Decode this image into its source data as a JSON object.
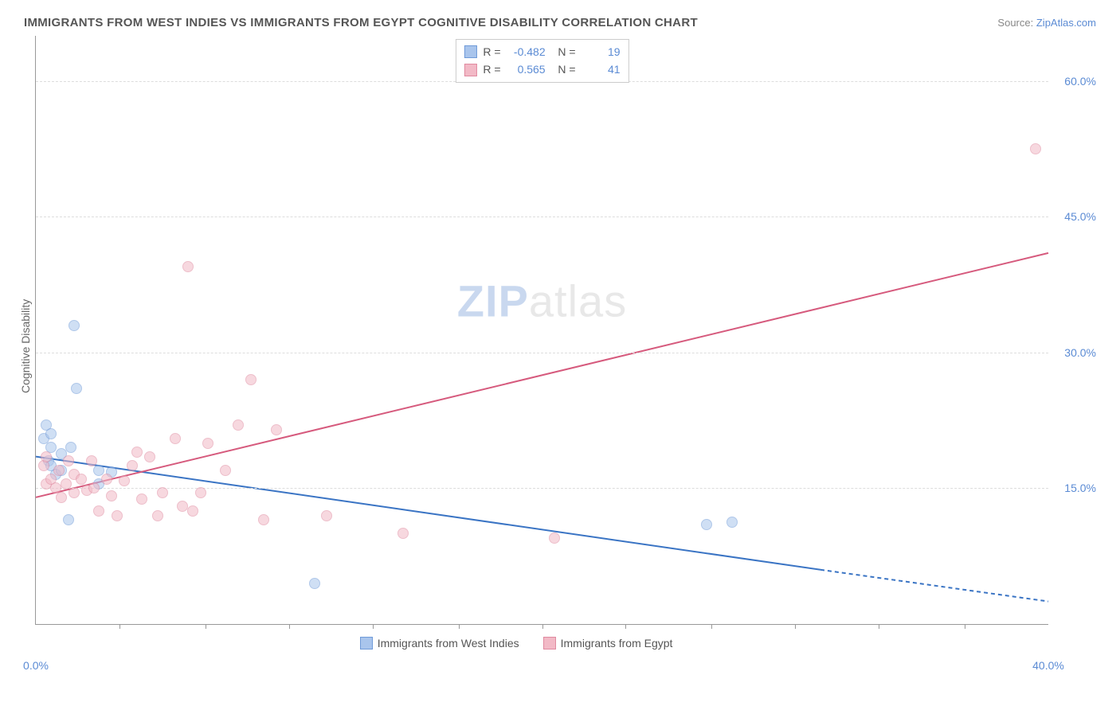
{
  "title": "IMMIGRANTS FROM WEST INDIES VS IMMIGRANTS FROM EGYPT COGNITIVE DISABILITY CORRELATION CHART",
  "source_label": "Source:",
  "source_name": "ZipAtlas.com",
  "chart": {
    "type": "scatter",
    "y_axis_label": "Cognitive Disability",
    "xlim": [
      0,
      40
    ],
    "ylim": [
      0,
      65
    ],
    "x_ticks": [
      0,
      40
    ],
    "x_tick_labels": [
      "0.0%",
      "40.0%"
    ],
    "x_minor_ticks": [
      3.3,
      6.7,
      10,
      13.3,
      16.7,
      20,
      23.3,
      26.7,
      30,
      33.3,
      36.7
    ],
    "y_ticks": [
      15,
      30,
      45,
      60
    ],
    "y_tick_labels": [
      "15.0%",
      "30.0%",
      "45.0%",
      "60.0%"
    ],
    "background_color": "#ffffff",
    "grid_color": "#dddddd",
    "axis_color": "#999999",
    "tick_label_color": "#5b8bd4",
    "marker_radius": 7,
    "marker_opacity": 0.55,
    "series": [
      {
        "name": "Immigrants from West Indies",
        "fill": "#a9c5ec",
        "stroke": "#6f9ad8",
        "line_color": "#3a74c4",
        "R": "-0.482",
        "N": "19",
        "trend": {
          "x1": 0,
          "y1": 18.5,
          "x2": 31,
          "y2": 6.0,
          "dash_x2": 40,
          "dash_y2": 2.5
        },
        "points": [
          [
            0.3,
            20.5
          ],
          [
            0.4,
            22.0
          ],
          [
            0.5,
            18.0
          ],
          [
            0.6,
            17.5
          ],
          [
            0.6,
            19.5
          ],
          [
            0.6,
            21.0
          ],
          [
            0.8,
            16.5
          ],
          [
            1.0,
            17.0
          ],
          [
            1.0,
            18.8
          ],
          [
            1.3,
            11.5
          ],
          [
            1.4,
            19.5
          ],
          [
            1.5,
            33.0
          ],
          [
            1.6,
            26.0
          ],
          [
            2.5,
            17.0
          ],
          [
            2.5,
            15.5
          ],
          [
            3.0,
            16.8
          ],
          [
            11.0,
            4.5
          ],
          [
            26.5,
            11.0
          ],
          [
            27.5,
            11.3
          ]
        ]
      },
      {
        "name": "Immigrants from Egypt",
        "fill": "#f2b9c6",
        "stroke": "#e08aa0",
        "line_color": "#d65a7d",
        "R": "0.565",
        "N": "41",
        "trend": {
          "x1": 0,
          "y1": 14.0,
          "x2": 40,
          "y2": 41.0
        },
        "points": [
          [
            0.3,
            17.5
          ],
          [
            0.4,
            18.5
          ],
          [
            0.4,
            15.5
          ],
          [
            0.6,
            16.0
          ],
          [
            0.8,
            15.0
          ],
          [
            0.9,
            17.0
          ],
          [
            1.0,
            14.0
          ],
          [
            1.2,
            15.5
          ],
          [
            1.3,
            18.0
          ],
          [
            1.5,
            16.5
          ],
          [
            1.5,
            14.5
          ],
          [
            1.8,
            16.0
          ],
          [
            2.0,
            14.8
          ],
          [
            2.2,
            18.0
          ],
          [
            2.3,
            15.0
          ],
          [
            2.5,
            12.5
          ],
          [
            2.8,
            16.0
          ],
          [
            3.0,
            14.2
          ],
          [
            3.2,
            12.0
          ],
          [
            3.5,
            15.8
          ],
          [
            3.8,
            17.5
          ],
          [
            4.0,
            19.0
          ],
          [
            4.2,
            13.8
          ],
          [
            4.5,
            18.5
          ],
          [
            4.8,
            12.0
          ],
          [
            5.0,
            14.5
          ],
          [
            5.5,
            20.5
          ],
          [
            5.8,
            13.0
          ],
          [
            6.0,
            39.5
          ],
          [
            6.2,
            12.5
          ],
          [
            6.5,
            14.5
          ],
          [
            6.8,
            20.0
          ],
          [
            7.5,
            17.0
          ],
          [
            8.0,
            22.0
          ],
          [
            8.5,
            27.0
          ],
          [
            9.0,
            11.5
          ],
          [
            9.5,
            21.5
          ],
          [
            11.5,
            12.0
          ],
          [
            14.5,
            10.0
          ],
          [
            20.5,
            9.5
          ],
          [
            39.5,
            52.5
          ]
        ]
      }
    ],
    "legend_bottom": [
      {
        "label": "Immigrants from West Indies",
        "fill": "#a9c5ec",
        "stroke": "#6f9ad8"
      },
      {
        "label": "Immigrants from Egypt",
        "fill": "#f2b9c6",
        "stroke": "#e08aa0"
      }
    ],
    "watermark": {
      "bold": "ZIP",
      "rest": "atlas"
    }
  }
}
